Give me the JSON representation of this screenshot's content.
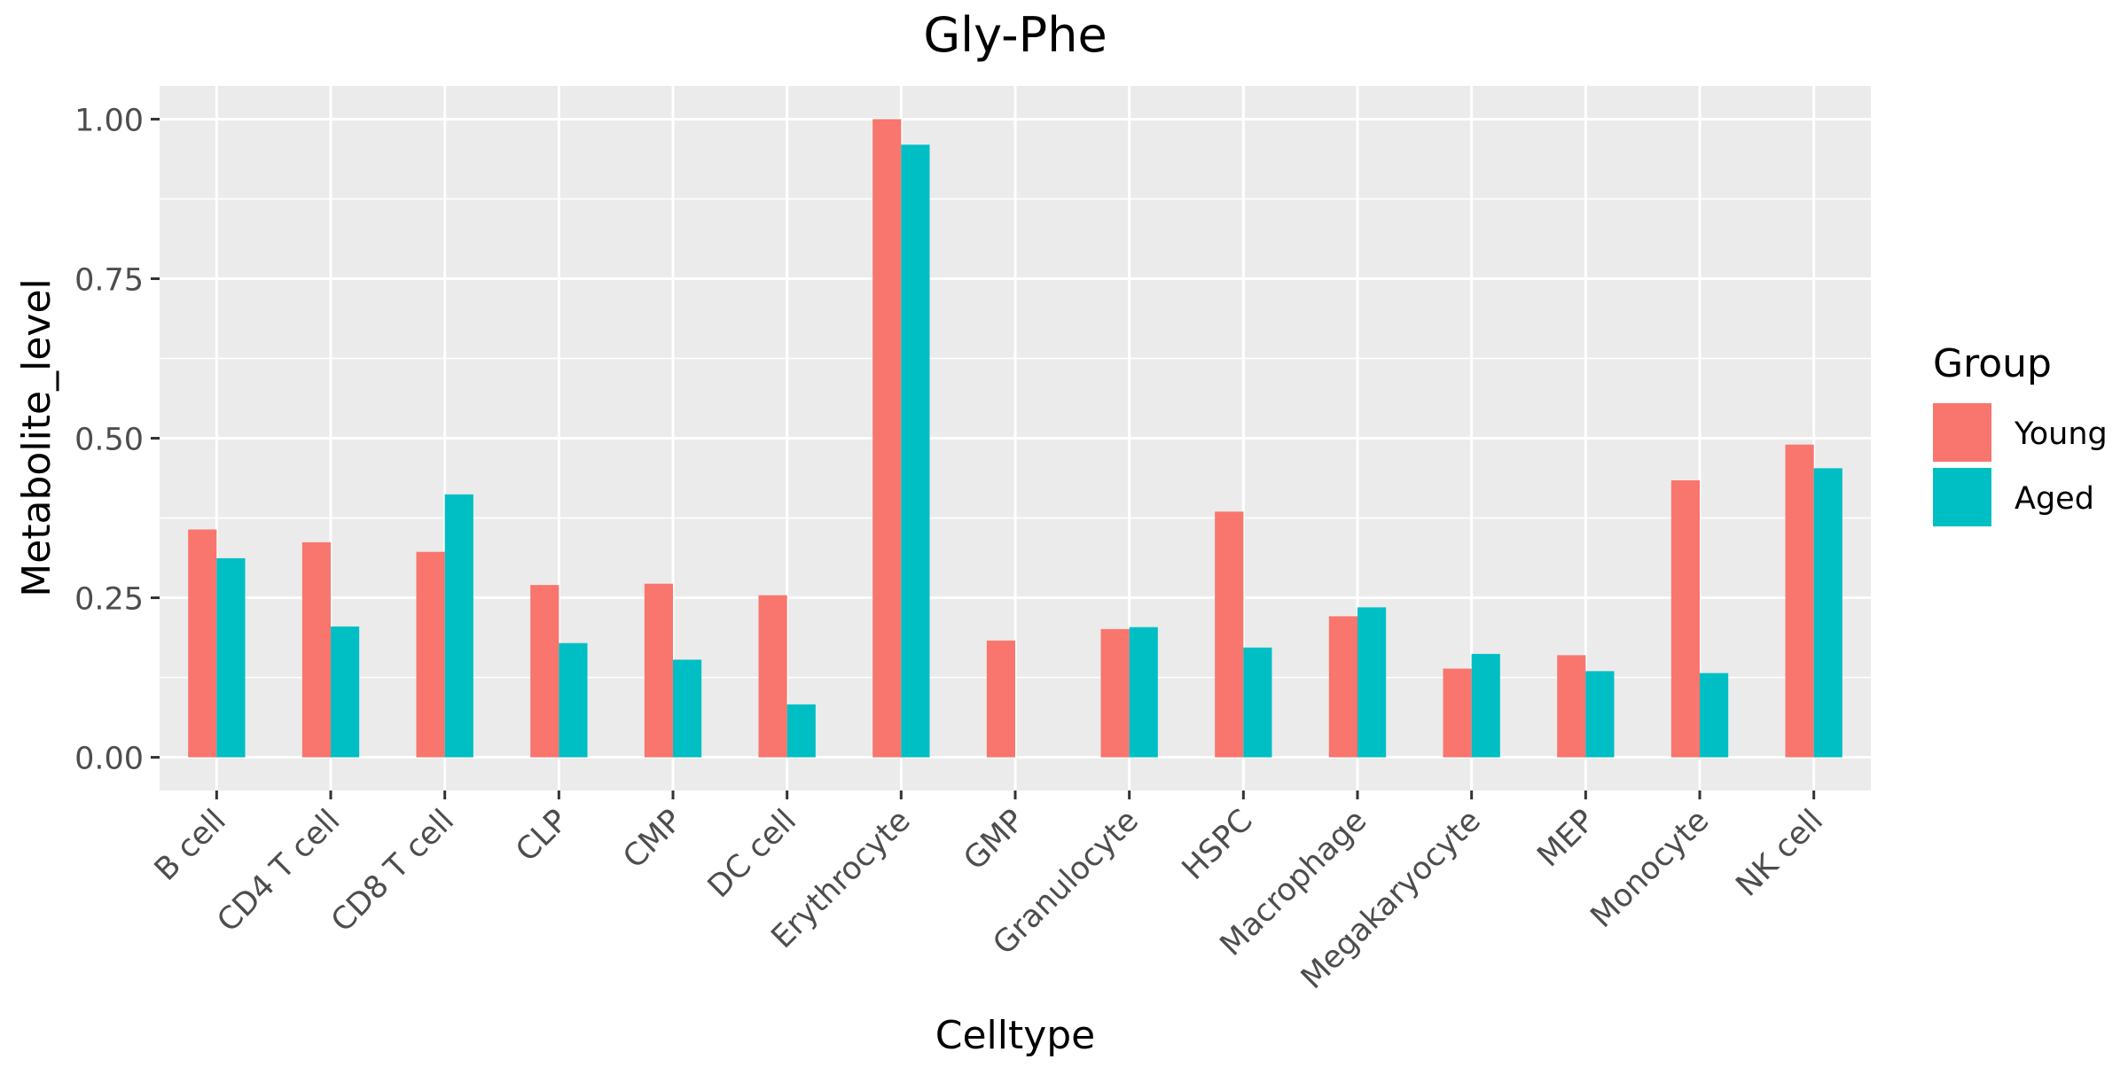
{
  "chart_data": {
    "type": "bar",
    "title": "Gly-Phe",
    "xlabel": "Celltype",
    "ylabel": "Metabolite_level",
    "categories": [
      "B cell",
      "CD4 T cell",
      "CD8 T cell",
      "CLP",
      "CMP",
      "DC cell",
      "Erythrocyte",
      "GMP",
      "Granulocyte",
      "HSPC",
      "Macrophage",
      "Megakaryocyte",
      "MEP",
      "Monocyte",
      "NK cell"
    ],
    "series": [
      {
        "name": "Young",
        "color": "#F8766D",
        "values": [
          0.357,
          0.337,
          0.322,
          0.27,
          0.272,
          0.254,
          1.0,
          0.183,
          0.201,
          0.385,
          0.221,
          0.139,
          0.16,
          0.434,
          0.49
        ]
      },
      {
        "name": "Aged",
        "color": "#00BFC4",
        "values": [
          0.312,
          0.205,
          0.412,
          0.179,
          0.153,
          0.083,
          0.96,
          null,
          0.204,
          0.172,
          0.235,
          0.162,
          0.135,
          0.132,
          0.453
        ]
      }
    ],
    "ylim": [
      -0.052,
      1.052
    ],
    "yticks": [
      0.0,
      0.25,
      0.5,
      0.75,
      1.0
    ],
    "ytick_labels": [
      "0.00",
      "0.25",
      "0.50",
      "0.75",
      "1.00"
    ],
    "grid": true,
    "panel_background": "#EBEBEB",
    "grid_color": "#FFFFFF",
    "legend": {
      "title": "Group",
      "position": "right",
      "entries": [
        "Young",
        "Aged"
      ]
    }
  }
}
